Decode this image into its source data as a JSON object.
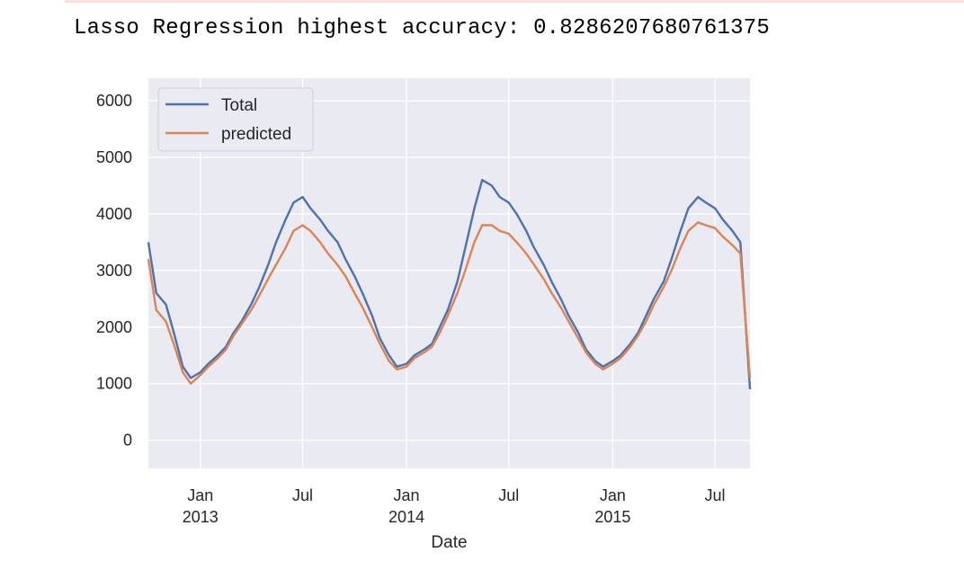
{
  "output": {
    "text": "Lasso Regression highest accuracy: 0.8286207680761375"
  },
  "chart_data": {
    "type": "line",
    "title": "",
    "xlabel": "Date",
    "ylabel": "",
    "x_range": [
      "2012-10-01",
      "2015-09-01"
    ],
    "ylim": [
      -500,
      6400
    ],
    "y_ticks": [
      0,
      1000,
      2000,
      3000,
      4000,
      5000,
      6000
    ],
    "x_ticks": [
      {
        "date": "2013-01-01",
        "label": "Jan",
        "year": "2013"
      },
      {
        "date": "2013-07-01",
        "label": "Jul",
        "year": ""
      },
      {
        "date": "2014-01-01",
        "label": "Jan",
        "year": "2014"
      },
      {
        "date": "2014-07-01",
        "label": "Jul",
        "year": ""
      },
      {
        "date": "2015-01-01",
        "label": "Jan",
        "year": "2015"
      },
      {
        "date": "2015-07-01",
        "label": "Jul",
        "year": ""
      }
    ],
    "grid": true,
    "legend_position": "top-left",
    "background": "#eaeaf2",
    "series": [
      {
        "name": "Total",
        "color": "#4c72b0",
        "points": [
          [
            "2012-10-01",
            3500
          ],
          [
            "2012-10-15",
            2600
          ],
          [
            "2012-11-01",
            2400
          ],
          [
            "2012-11-15",
            1900
          ],
          [
            "2012-12-01",
            1300
          ],
          [
            "2012-12-15",
            1100
          ],
          [
            "2013-01-01",
            1200
          ],
          [
            "2013-01-15",
            1350
          ],
          [
            "2013-02-01",
            1500
          ],
          [
            "2013-02-15",
            1650
          ],
          [
            "2013-03-01",
            1900
          ],
          [
            "2013-03-15",
            2100
          ],
          [
            "2013-04-01",
            2400
          ],
          [
            "2013-04-15",
            2700
          ],
          [
            "2013-05-01",
            3100
          ],
          [
            "2013-05-15",
            3500
          ],
          [
            "2013-06-01",
            3900
          ],
          [
            "2013-06-15",
            4200
          ],
          [
            "2013-07-01",
            4300
          ],
          [
            "2013-07-15",
            4100
          ],
          [
            "2013-08-01",
            3900
          ],
          [
            "2013-08-15",
            3700
          ],
          [
            "2013-09-01",
            3500
          ],
          [
            "2013-09-15",
            3200
          ],
          [
            "2013-10-01",
            2900
          ],
          [
            "2013-10-15",
            2600
          ],
          [
            "2013-11-01",
            2200
          ],
          [
            "2013-11-15",
            1800
          ],
          [
            "2013-12-01",
            1500
          ],
          [
            "2013-12-15",
            1300
          ],
          [
            "2014-01-01",
            1350
          ],
          [
            "2014-01-15",
            1500
          ],
          [
            "2014-02-01",
            1600
          ],
          [
            "2014-02-15",
            1700
          ],
          [
            "2014-03-01",
            2000
          ],
          [
            "2014-03-15",
            2300
          ],
          [
            "2014-04-01",
            2800
          ],
          [
            "2014-04-15",
            3400
          ],
          [
            "2014-05-01",
            4100
          ],
          [
            "2014-05-15",
            4600
          ],
          [
            "2014-06-01",
            4500
          ],
          [
            "2014-06-15",
            4300
          ],
          [
            "2014-07-01",
            4200
          ],
          [
            "2014-07-15",
            4000
          ],
          [
            "2014-08-01",
            3700
          ],
          [
            "2014-08-15",
            3400
          ],
          [
            "2014-09-01",
            3100
          ],
          [
            "2014-09-15",
            2800
          ],
          [
            "2014-10-01",
            2500
          ],
          [
            "2014-10-15",
            2200
          ],
          [
            "2014-11-01",
            1900
          ],
          [
            "2014-11-15",
            1600
          ],
          [
            "2014-12-01",
            1400
          ],
          [
            "2014-12-15",
            1300
          ],
          [
            "2015-01-01",
            1400
          ],
          [
            "2015-01-15",
            1500
          ],
          [
            "2015-02-01",
            1700
          ],
          [
            "2015-02-15",
            1900
          ],
          [
            "2015-03-01",
            2200
          ],
          [
            "2015-03-15",
            2500
          ],
          [
            "2015-04-01",
            2800
          ],
          [
            "2015-04-15",
            3200
          ],
          [
            "2015-05-01",
            3700
          ],
          [
            "2015-05-15",
            4100
          ],
          [
            "2015-06-01",
            4300
          ],
          [
            "2015-06-15",
            4200
          ],
          [
            "2015-07-01",
            4100
          ],
          [
            "2015-07-15",
            3900
          ],
          [
            "2015-08-01",
            3700
          ],
          [
            "2015-08-15",
            3500
          ],
          [
            "2015-09-01",
            900
          ]
        ]
      },
      {
        "name": "predicted",
        "color": "#dd8452",
        "points": [
          [
            "2012-10-01",
            3200
          ],
          [
            "2012-10-15",
            2300
          ],
          [
            "2012-11-01",
            2100
          ],
          [
            "2012-11-15",
            1700
          ],
          [
            "2012-12-01",
            1200
          ],
          [
            "2012-12-15",
            1000
          ],
          [
            "2013-01-01",
            1150
          ],
          [
            "2013-01-15",
            1300
          ],
          [
            "2013-02-01",
            1450
          ],
          [
            "2013-02-15",
            1600
          ],
          [
            "2013-03-01",
            1850
          ],
          [
            "2013-03-15",
            2050
          ],
          [
            "2013-04-01",
            2300
          ],
          [
            "2013-04-15",
            2550
          ],
          [
            "2013-05-01",
            2850
          ],
          [
            "2013-05-15",
            3100
          ],
          [
            "2013-06-01",
            3400
          ],
          [
            "2013-06-15",
            3700
          ],
          [
            "2013-07-01",
            3800
          ],
          [
            "2013-07-15",
            3700
          ],
          [
            "2013-08-01",
            3500
          ],
          [
            "2013-08-15",
            3300
          ],
          [
            "2013-09-01",
            3100
          ],
          [
            "2013-09-15",
            2900
          ],
          [
            "2013-10-01",
            2600
          ],
          [
            "2013-10-15",
            2350
          ],
          [
            "2013-11-01",
            2000
          ],
          [
            "2013-11-15",
            1700
          ],
          [
            "2013-12-01",
            1400
          ],
          [
            "2013-12-15",
            1250
          ],
          [
            "2014-01-01",
            1300
          ],
          [
            "2014-01-15",
            1450
          ],
          [
            "2014-02-01",
            1550
          ],
          [
            "2014-02-15",
            1650
          ],
          [
            "2014-03-01",
            1900
          ],
          [
            "2014-03-15",
            2200
          ],
          [
            "2014-04-01",
            2600
          ],
          [
            "2014-04-15",
            3000
          ],
          [
            "2014-05-01",
            3500
          ],
          [
            "2014-05-15",
            3800
          ],
          [
            "2014-06-01",
            3800
          ],
          [
            "2014-06-15",
            3700
          ],
          [
            "2014-07-01",
            3650
          ],
          [
            "2014-07-15",
            3500
          ],
          [
            "2014-08-01",
            3300
          ],
          [
            "2014-08-15",
            3100
          ],
          [
            "2014-09-01",
            2850
          ],
          [
            "2014-09-15",
            2600
          ],
          [
            "2014-10-01",
            2350
          ],
          [
            "2014-10-15",
            2100
          ],
          [
            "2014-11-01",
            1800
          ],
          [
            "2014-11-15",
            1550
          ],
          [
            "2014-12-01",
            1350
          ],
          [
            "2014-12-15",
            1250
          ],
          [
            "2015-01-01",
            1350
          ],
          [
            "2015-01-15",
            1450
          ],
          [
            "2015-02-01",
            1650
          ],
          [
            "2015-02-15",
            1850
          ],
          [
            "2015-03-01",
            2100
          ],
          [
            "2015-03-15",
            2400
          ],
          [
            "2015-04-01",
            2700
          ],
          [
            "2015-04-15",
            3000
          ],
          [
            "2015-05-01",
            3400
          ],
          [
            "2015-05-15",
            3700
          ],
          [
            "2015-06-01",
            3850
          ],
          [
            "2015-06-15",
            3800
          ],
          [
            "2015-07-01",
            3750
          ],
          [
            "2015-07-15",
            3600
          ],
          [
            "2015-08-01",
            3450
          ],
          [
            "2015-08-15",
            3300
          ],
          [
            "2015-09-01",
            1100
          ]
        ]
      }
    ]
  }
}
